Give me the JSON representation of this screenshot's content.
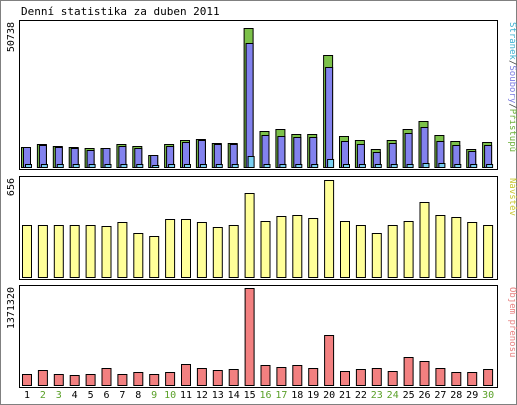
{
  "chart_data": {
    "type": "bar",
    "title": "Denní statistika za duben 2011",
    "categories": [
      "1",
      "2",
      "3",
      "4",
      "5",
      "6",
      "7",
      "8",
      "9",
      "10",
      "11",
      "12",
      "13",
      "14",
      "15",
      "16",
      "17",
      "18",
      "19",
      "20",
      "21",
      "22",
      "23",
      "24",
      "25",
      "26",
      "27",
      "28",
      "29",
      "30"
    ],
    "weekend_days": [
      "2",
      "3",
      "9",
      "10",
      "16",
      "17",
      "23",
      "24",
      "30"
    ],
    "panels": [
      {
        "legend": [
          "Stránek",
          "/",
          "Soubory",
          "/",
          "Přístupů"
        ],
        "legend_colors": [
          "#3ab0d0",
          "#404040",
          "#7b7be0",
          "#404040",
          "#6bb038"
        ],
        "ymax_label": "50738",
        "ymax": 50738,
        "series": [
          {
            "name": "Přístupů",
            "color": "#7cc14a",
            "values": [
              7000,
              8100,
              7300,
              7000,
              6400,
              6700,
              8000,
              7100,
              4200,
              8000,
              9200,
              9800,
              8300,
              8300,
              48000,
              12500,
              13100,
              11500,
              11500,
              38600,
              10800,
              9300,
              6100,
              9400,
              13200,
              15900,
              11000,
              9100,
              6200,
              8700
            ]
          },
          {
            "name": "Soubory",
            "color": "#8282ee",
            "values": [
              6800,
              7700,
              6900,
              6600,
              6000,
              6400,
              7200,
              6400,
              4000,
              7300,
              8800,
              9300,
              7800,
              7800,
              42800,
              11100,
              10800,
              10200,
              10500,
              34600,
              9100,
              7800,
              5200,
              8200,
              11700,
              13700,
              8900,
              7700,
              5500,
              7600
            ]
          },
          {
            "name": "Stránek",
            "color": "#7ad0f2",
            "values": [
              1100,
              1000,
              1000,
              900,
              950,
              950,
              900,
              900,
              800,
              1100,
              1200,
              1100,
              1100,
              1100,
              3900,
              1200,
              1200,
              1100,
              1200,
              2800,
              1100,
              1000,
              900,
              1100,
              1200,
              1500,
              1300,
              1100,
              1000,
              1100
            ]
          }
        ]
      },
      {
        "legend": [
          "Návštěv"
        ],
        "legend_colors": [
          "#c8c830"
        ],
        "ymax_label": "656",
        "ymax": 656,
        "series": [
          {
            "name": "Návštěv",
            "color": "#ffff99",
            "values": [
              355,
              350,
              355,
              355,
              350,
              345,
              370,
              300,
              280,
              390,
              390,
              370,
              340,
              355,
              570,
              380,
              415,
              420,
              400,
              656,
              380,
              355,
              300,
              350,
              380,
              505,
              420,
              405,
              375,
              350
            ]
          }
        ]
      },
      {
        "legend": [
          "Objem přenosu"
        ],
        "legend_colors": [
          "#e88080"
        ],
        "ymax_label": "1371320",
        "ymax": 1371320,
        "series": [
          {
            "name": "Objem přenosu",
            "color": "#f28080",
            "values": [
              150000,
              215000,
              160000,
              145000,
              150000,
              245000,
              160000,
              180000,
              155000,
              190000,
              290000,
              235000,
              215000,
              220000,
              1371320,
              285000,
              250000,
              285000,
              240000,
              710000,
              195000,
              225000,
              235000,
              200000,
              395000,
              340000,
              245000,
              180000,
              180000,
              230000
            ]
          }
        ]
      }
    ]
  }
}
